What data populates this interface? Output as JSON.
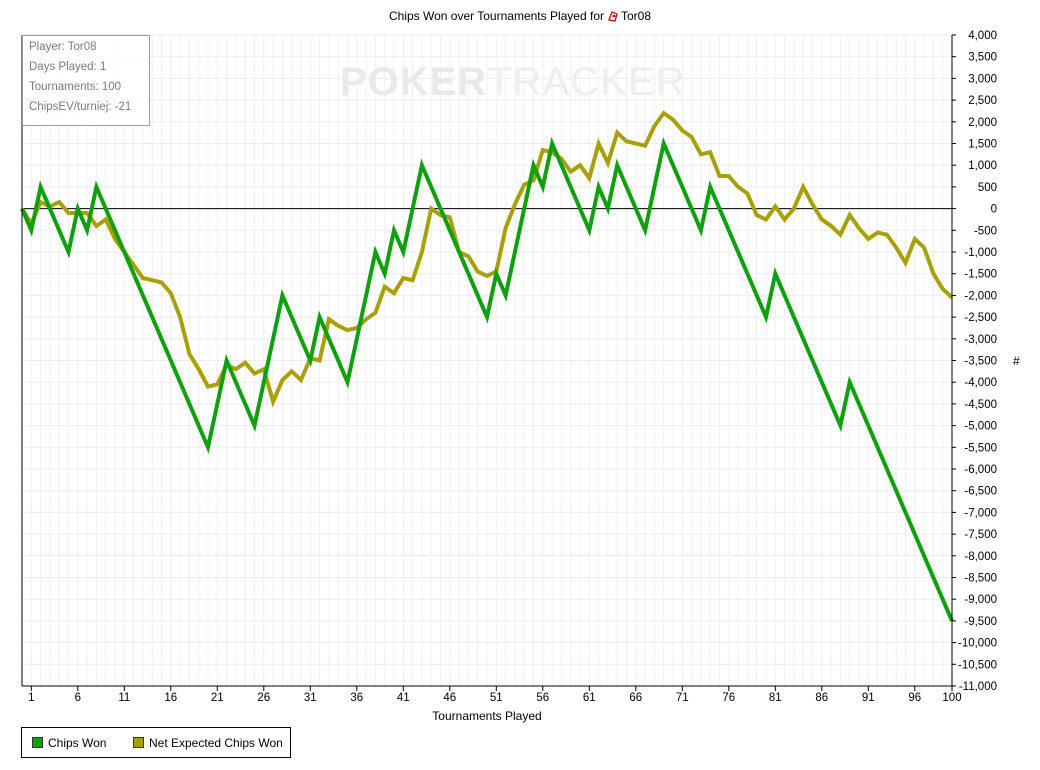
{
  "title": {
    "prefix": "Chips Won over Tournaments Played for",
    "player": "Tor08"
  },
  "infobox": {
    "lines": [
      "Player: Tor08",
      "Days Played: 1",
      "Tournaments: 100",
      "ChipsEV/turniej: -21"
    ]
  },
  "watermark": {
    "part1": "POKER",
    "part2": "TRACKER"
  },
  "legend": [
    {
      "label": "Chips Won",
      "color": "#0f9f0f"
    },
    {
      "label": "Net Expected Chips Won",
      "color": "#a8a007"
    }
  ],
  "chart_data": {
    "type": "line",
    "title": "Chips Won over Tournaments Played for Tor08",
    "xlabel": "Tournaments Played",
    "ylabel": "#",
    "xlim": [
      0,
      100
    ],
    "ylim": [
      -11000,
      4000
    ],
    "y_step": 500,
    "x_ticks": [
      1,
      6,
      11,
      16,
      21,
      26,
      31,
      36,
      41,
      46,
      51,
      56,
      61,
      66,
      71,
      76,
      81,
      86,
      91,
      96,
      100
    ],
    "y_axis_side": "right",
    "grid": true,
    "legend_position": "bottom-left",
    "series": [
      {
        "name": "Chips Won",
        "color": "#0f9f0f",
        "x": [
          0,
          1,
          2,
          5,
          6,
          7,
          8,
          20,
          22,
          25,
          28,
          31,
          32,
          35,
          38,
          39,
          40,
          41,
          43,
          50,
          51,
          52,
          55,
          56,
          57,
          61,
          62,
          63,
          64,
          67,
          69,
          73,
          74,
          80,
          81,
          88,
          89,
          100
        ],
        "y": [
          0,
          -500,
          500,
          -1000,
          0,
          -500,
          500,
          -5500,
          -3500,
          -5000,
          -2000,
          -3500,
          -2500,
          -4000,
          -1000,
          -1500,
          -500,
          -1000,
          1000,
          -2500,
          -1500,
          -2000,
          1000,
          500,
          1500,
          -500,
          500,
          0,
          1000,
          -500,
          1500,
          -500,
          500,
          -2500,
          -1500,
          -5000,
          -4000,
          -9500
        ]
      },
      {
        "name": "Net Expected Chips Won",
        "color": "#a8a007",
        "x": [
          0,
          1,
          2,
          3,
          4,
          5,
          6,
          7,
          8,
          9,
          10,
          11,
          12,
          13,
          14,
          15,
          16,
          17,
          18,
          19,
          20,
          21,
          22,
          23,
          24,
          25,
          26,
          27,
          28,
          29,
          30,
          31,
          32,
          33,
          34,
          35,
          36,
          37,
          38,
          39,
          40,
          41,
          42,
          43,
          44,
          45,
          46,
          47,
          48,
          49,
          50,
          51,
          52,
          53,
          54,
          55,
          56,
          57,
          58,
          59,
          60,
          61,
          62,
          63,
          64,
          65,
          66,
          67,
          68,
          69,
          70,
          71,
          72,
          73,
          74,
          75,
          76,
          77,
          78,
          79,
          80,
          81,
          82,
          83,
          84,
          85,
          86,
          87,
          88,
          89,
          90,
          91,
          92,
          93,
          94,
          95,
          96,
          97,
          98,
          99,
          100
        ],
        "y": [
          0,
          -350,
          150,
          50,
          150,
          -100,
          -100,
          -100,
          -400,
          -250,
          -700,
          -1000,
          -1300,
          -1600,
          -1650,
          -1700,
          -1950,
          -2500,
          -3350,
          -3700,
          -4100,
          -4050,
          -3600,
          -3700,
          -3550,
          -3800,
          -3700,
          -4450,
          -3950,
          -3750,
          -3950,
          -3450,
          -3500,
          -2550,
          -2700,
          -2800,
          -2750,
          -2550,
          -2400,
          -1800,
          -1950,
          -1600,
          -1650,
          -1000,
          0,
          -150,
          -200,
          -1000,
          -1100,
          -1450,
          -1550,
          -1450,
          -450,
          100,
          550,
          650,
          1350,
          1300,
          1150,
          850,
          1000,
          700,
          1500,
          1050,
          1750,
          1550,
          1500,
          1450,
          1900,
          2200,
          2050,
          1800,
          1650,
          1250,
          1300,
          750,
          750,
          500,
          350,
          -150,
          -250,
          50,
          -250,
          0,
          500,
          100,
          -250,
          -400,
          -600,
          -150,
          -450,
          -700,
          -550,
          -600,
          -900,
          -1250,
          -700,
          -900,
          -1500,
          -1850,
          -2050
        ]
      }
    ]
  }
}
